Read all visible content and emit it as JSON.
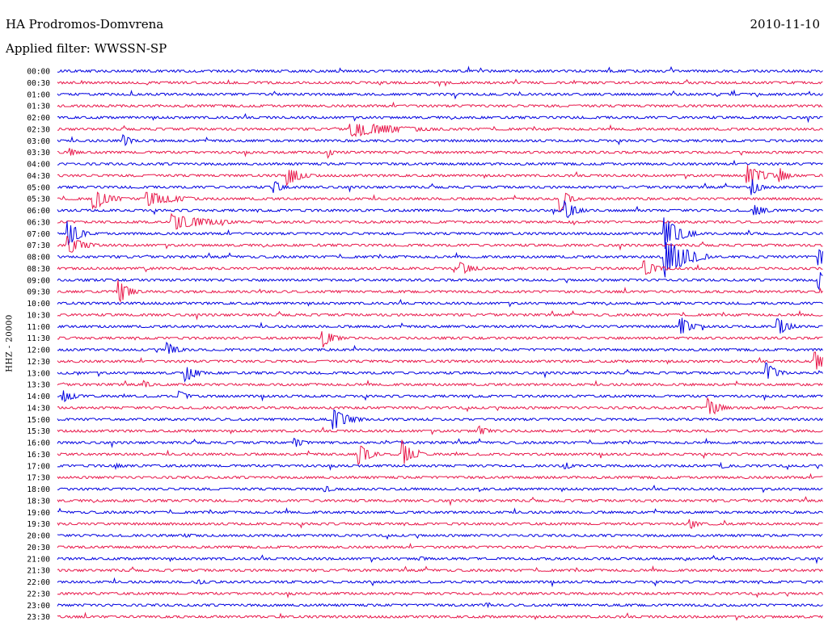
{
  "header": {
    "station": "HA Prodromos-Domvrena",
    "date": "2010-11-10",
    "filter": "Applied filter: WWSSN-SP"
  },
  "channel_label": "HHZ - 20000",
  "chart_data": {
    "type": "line",
    "title": "HA Prodromos-Domvrena",
    "ylabel": "HHZ - 20000",
    "row_labels": [
      "00:00",
      "00:30",
      "01:00",
      "01:30",
      "02:00",
      "02:30",
      "03:00",
      "03:30",
      "04:00",
      "04:30",
      "05:00",
      "05:30",
      "06:00",
      "06:30",
      "07:00",
      "07:30",
      "08:00",
      "08:30",
      "09:00",
      "09:30",
      "10:00",
      "10:30",
      "11:00",
      "11:30",
      "12:00",
      "12:30",
      "13:00",
      "13:30",
      "14:00",
      "14:30",
      "15:00",
      "15:30",
      "16:00",
      "16:30",
      "17:00",
      "17:30",
      "18:00",
      "18:30",
      "19:00",
      "19:30",
      "20:00",
      "20:30",
      "21:00",
      "21:30",
      "22:00",
      "22:30",
      "23:00",
      "23:30"
    ],
    "series_colors": [
      "#0000e0",
      "#e8174a"
    ],
    "trace_minutes": 30,
    "grid": false,
    "events": [
      {
        "row": 5,
        "minute": 11.5,
        "amp": 1.0,
        "dur": 1.8
      },
      {
        "row": 6,
        "minute": 2.6,
        "amp": 0.8,
        "dur": 0.3
      },
      {
        "row": 7,
        "minute": 0.5,
        "amp": 0.6,
        "dur": 0.3
      },
      {
        "row": 7,
        "minute": 10.6,
        "amp": 0.7,
        "dur": 0.2
      },
      {
        "row": 9,
        "minute": 9.0,
        "amp": 1.3,
        "dur": 0.5
      },
      {
        "row": 9,
        "minute": 27.0,
        "amp": 1.5,
        "dur": 0.6
      },
      {
        "row": 9,
        "minute": 28.3,
        "amp": 1.1,
        "dur": 0.3
      },
      {
        "row": 10,
        "minute": 8.5,
        "amp": 0.9,
        "dur": 0.3
      },
      {
        "row": 10,
        "minute": 27.2,
        "amp": 1.2,
        "dur": 0.3
      },
      {
        "row": 11,
        "minute": 1.4,
        "amp": 1.4,
        "dur": 0.6
      },
      {
        "row": 11,
        "minute": 3.5,
        "amp": 0.9,
        "dur": 1.2
      },
      {
        "row": 11,
        "minute": 19.7,
        "amp": 1.8,
        "dur": 0.3
      },
      {
        "row": 12,
        "minute": 19.9,
        "amp": 1.2,
        "dur": 0.4
      },
      {
        "row": 12,
        "minute": 27.3,
        "amp": 0.9,
        "dur": 0.4
      },
      {
        "row": 13,
        "minute": 4.5,
        "amp": 1.0,
        "dur": 1.4
      },
      {
        "row": 14,
        "minute": 0.4,
        "amp": 1.8,
        "dur": 0.4
      },
      {
        "row": 14,
        "minute": 23.8,
        "amp": 2.0,
        "dur": 0.6
      },
      {
        "row": 15,
        "minute": 0.4,
        "amp": 1.2,
        "dur": 0.6
      },
      {
        "row": 16,
        "minute": 23.8,
        "amp": 2.6,
        "dur": 0.8
      },
      {
        "row": 16,
        "minute": 29.8,
        "amp": 1.2,
        "dur": 0.4
      },
      {
        "row": 17,
        "minute": 15.8,
        "amp": 0.8,
        "dur": 0.5
      },
      {
        "row": 17,
        "minute": 23.0,
        "amp": 1.0,
        "dur": 0.5
      },
      {
        "row": 18,
        "minute": 29.8,
        "amp": 1.4,
        "dur": 0.4
      },
      {
        "row": 19,
        "minute": 2.4,
        "amp": 1.6,
        "dur": 0.4
      },
      {
        "row": 22,
        "minute": 24.4,
        "amp": 1.4,
        "dur": 0.4
      },
      {
        "row": 22,
        "minute": 28.2,
        "amp": 1.3,
        "dur": 0.4
      },
      {
        "row": 23,
        "minute": 10.4,
        "amp": 1.2,
        "dur": 0.4
      },
      {
        "row": 24,
        "minute": 4.3,
        "amp": 0.9,
        "dur": 0.4
      },
      {
        "row": 25,
        "minute": 29.7,
        "amp": 1.2,
        "dur": 0.4
      },
      {
        "row": 26,
        "minute": 5.0,
        "amp": 1.2,
        "dur": 0.4
      },
      {
        "row": 26,
        "minute": 27.8,
        "amp": 1.3,
        "dur": 0.4
      },
      {
        "row": 27,
        "minute": 3.4,
        "amp": 0.6,
        "dur": 0.3
      },
      {
        "row": 28,
        "minute": 0.2,
        "amp": 0.8,
        "dur": 0.5
      },
      {
        "row": 28,
        "minute": 4.8,
        "amp": 0.8,
        "dur": 0.3
      },
      {
        "row": 29,
        "minute": 25.5,
        "amp": 1.4,
        "dur": 0.4
      },
      {
        "row": 30,
        "minute": 10.8,
        "amp": 1.4,
        "dur": 0.6
      },
      {
        "row": 31,
        "minute": 16.5,
        "amp": 0.7,
        "dur": 0.4
      },
      {
        "row": 32,
        "minute": 9.3,
        "amp": 0.6,
        "dur": 0.4
      },
      {
        "row": 33,
        "minute": 11.8,
        "amp": 1.6,
        "dur": 0.4
      },
      {
        "row": 33,
        "minute": 13.5,
        "amp": 1.8,
        "dur": 0.4
      },
      {
        "row": 34,
        "minute": 2.3,
        "amp": 0.4,
        "dur": 0.3
      },
      {
        "row": 34,
        "minute": 19.9,
        "amp": 0.5,
        "dur": 0.3
      },
      {
        "row": 34,
        "minute": 26.0,
        "amp": 0.5,
        "dur": 0.3
      },
      {
        "row": 36,
        "minute": 10.5,
        "amp": 0.4,
        "dur": 0.4
      },
      {
        "row": 39,
        "minute": 24.8,
        "amp": 0.7,
        "dur": 0.3
      },
      {
        "row": 40,
        "minute": 5.0,
        "amp": 0.3,
        "dur": 0.5
      },
      {
        "row": 42,
        "minute": 14.2,
        "amp": 0.3,
        "dur": 0.4
      },
      {
        "row": 44,
        "minute": 5.5,
        "amp": 0.3,
        "dur": 0.6
      },
      {
        "row": 46,
        "minute": 16.8,
        "amp": 0.3,
        "dur": 0.2
      }
    ]
  }
}
